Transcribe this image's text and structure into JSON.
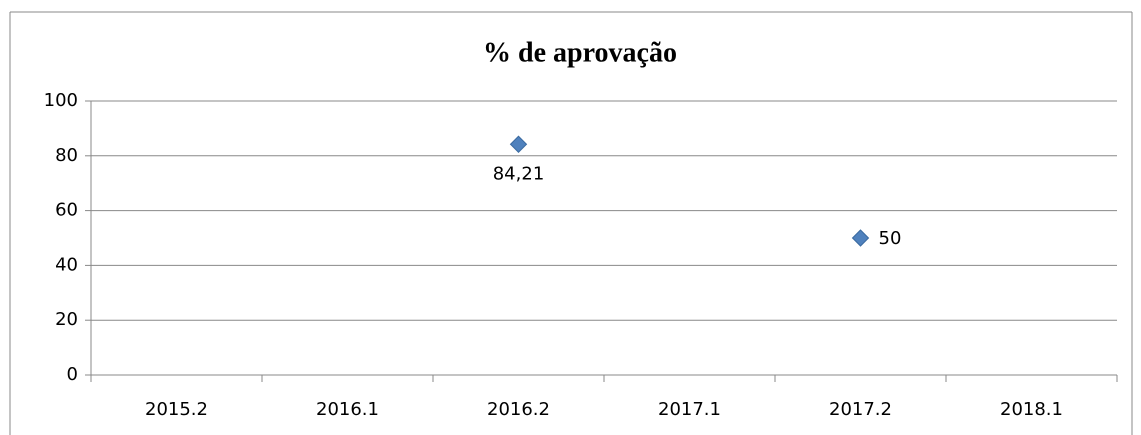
{
  "chart_data": {
    "type": "scatter",
    "title": "% de aprovação",
    "categories": [
      "2015.2",
      "2016.1",
      "2016.2",
      "2017.1",
      "2017.2",
      "2018.1"
    ],
    "values": [
      null,
      null,
      84.21,
      null,
      50,
      null
    ],
    "value_labels": [
      null,
      null,
      "84,21",
      null,
      null,
      null
    ],
    "value_label_position": [
      null,
      null,
      "below",
      null,
      "right",
      null
    ],
    "color": "#4f81bd",
    "ylim": [
      0,
      100
    ],
    "yticks": [
      0,
      20,
      40,
      60,
      80,
      100
    ],
    "grid": true
  }
}
